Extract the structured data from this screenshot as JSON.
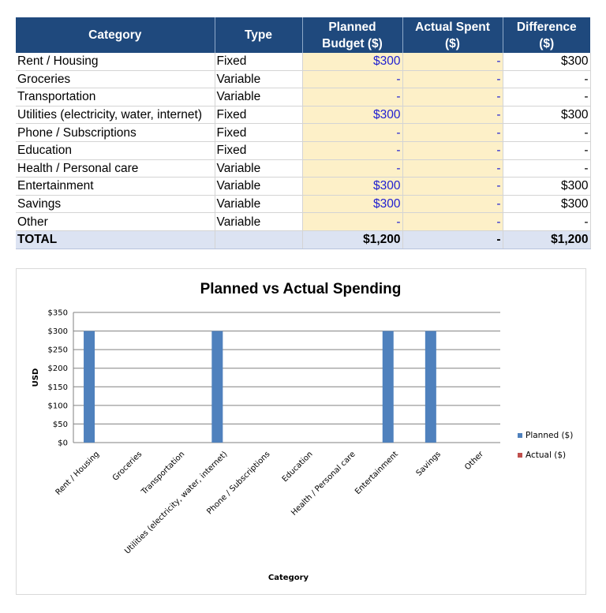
{
  "table": {
    "headers": {
      "category": "Category",
      "type": "Type",
      "planned_line1": "Planned",
      "planned_line2": "Budget ($)",
      "actual_line1": "Actual Spent",
      "actual_line2": "($)",
      "diff_line1": "Difference",
      "diff_line2": "($)"
    },
    "rows": [
      {
        "category": "Rent / Housing",
        "type": "Fixed",
        "planned": "$300",
        "actual": "-",
        "difference": "$300"
      },
      {
        "category": "Groceries",
        "type": "Variable",
        "planned": "-",
        "actual": "-",
        "difference": "-"
      },
      {
        "category": "Transportation",
        "type": "Variable",
        "planned": "-",
        "actual": "-",
        "difference": "-"
      },
      {
        "category": "Utilities (electricity, water, internet)",
        "type": "Fixed",
        "planned": "$300",
        "actual": "-",
        "difference": "$300"
      },
      {
        "category": "Phone / Subscriptions",
        "type": "Fixed",
        "planned": "-",
        "actual": "-",
        "difference": "-"
      },
      {
        "category": "Education",
        "type": "Fixed",
        "planned": "-",
        "actual": "-",
        "difference": "-"
      },
      {
        "category": "Health / Personal care",
        "type": "Variable",
        "planned": "-",
        "actual": "-",
        "difference": "-"
      },
      {
        "category": "Entertainment",
        "type": "Variable",
        "planned": "$300",
        "actual": "-",
        "difference": "$300"
      },
      {
        "category": "Savings",
        "type": "Variable",
        "planned": "$300",
        "actual": "-",
        "difference": "$300"
      },
      {
        "category": "Other",
        "type": "Variable",
        "planned": "-",
        "actual": "-",
        "difference": "-"
      }
    ],
    "total": {
      "label": "TOTAL",
      "type": "",
      "planned": "$1,200",
      "actual": "-",
      "difference": "$1,200"
    }
  },
  "colors": {
    "header_bg": "#1f497d",
    "input_bg": "#fdf0c8",
    "total_bg": "#dce3f2",
    "planned_series": "#4f81bd",
    "actual_series": "#c0504d"
  },
  "chart_data": {
    "type": "bar",
    "title": "Planned vs Actual Spending",
    "xlabel": "Category",
    "ylabel": "USD",
    "categories": [
      "Rent / Housing",
      "Groceries",
      "Transportation",
      "Utilities (electricity, water, internet)",
      "Phone / Subscriptions",
      "Education",
      "Health / Personal care",
      "Entertainment",
      "Savings",
      "Other"
    ],
    "series": [
      {
        "name": "Planned ($)",
        "values": [
          300,
          0,
          0,
          300,
          0,
          0,
          0,
          300,
          300,
          0
        ]
      },
      {
        "name": "Actual ($)",
        "values": [
          0,
          0,
          0,
          0,
          0,
          0,
          0,
          0,
          0,
          0
        ]
      }
    ],
    "ylim": [
      0,
      350
    ],
    "yticks": [
      0,
      50,
      100,
      150,
      200,
      250,
      300,
      350
    ],
    "ytick_labels": [
      "$0",
      "$50",
      "$100",
      "$150",
      "$200",
      "$250",
      "$300",
      "$350"
    ],
    "grid": true,
    "legend": "right"
  }
}
